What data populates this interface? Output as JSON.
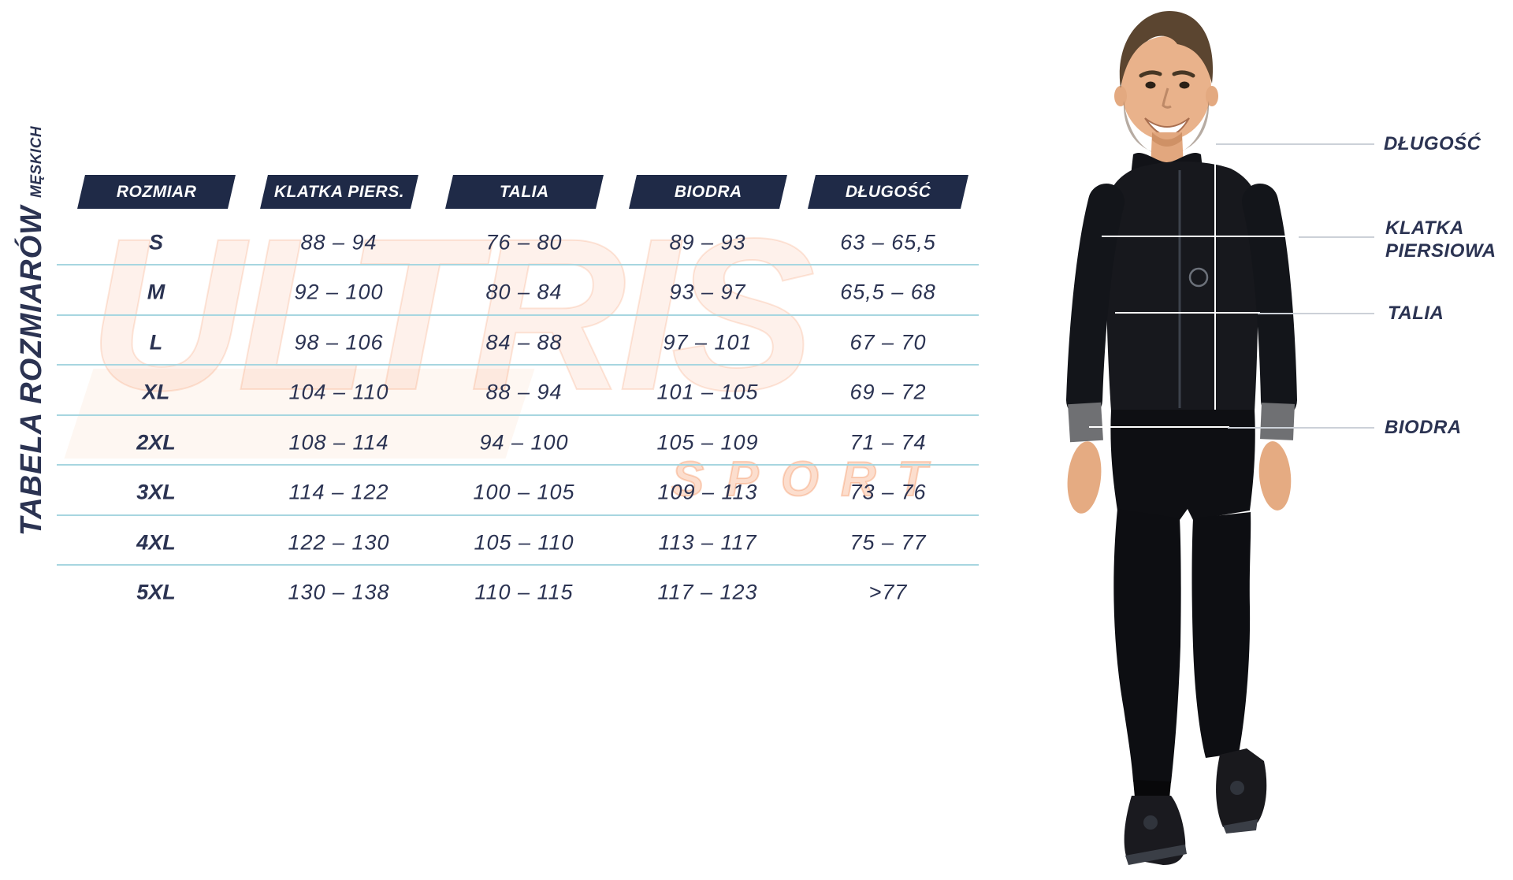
{
  "title": {
    "main": "TABELA ROZMIARÓW",
    "sub": "MĘSKICH"
  },
  "watermark": {
    "word1": "ULTRIS",
    "word2": "SPORT"
  },
  "table": {
    "columns": [
      "ROZMIAR",
      "KLATKA PIERS.",
      "TALIA",
      "BIODRA",
      "DŁUGOŚĆ"
    ],
    "rows": [
      {
        "size": "S",
        "chest": "88 – 94",
        "waist": "76 – 80",
        "hips": "89 – 93",
        "length": "63 – 65,5"
      },
      {
        "size": "M",
        "chest": "92 – 100",
        "waist": "80 – 84",
        "hips": "93 – 97",
        "length": "65,5 – 68"
      },
      {
        "size": "L",
        "chest": "98 – 106",
        "waist": "84 – 88",
        "hips": "97 – 101",
        "length": "67 – 70"
      },
      {
        "size": "XL",
        "chest": "104 – 110",
        "waist": "88 – 94",
        "hips": "101 – 105",
        "length": "69 – 72"
      },
      {
        "size": "2XL",
        "chest": "108 – 114",
        "waist": "94 – 100",
        "hips": "105 – 109",
        "length": "71 – 74"
      },
      {
        "size": "3XL",
        "chest": "114 – 122",
        "waist": "100 – 105",
        "hips": "109 – 113",
        "length": "73 – 76"
      },
      {
        "size": "4XL",
        "chest": "122 – 130",
        "waist": "105 – 110",
        "hips": "113 – 117",
        "length": "75 – 77"
      },
      {
        "size": "5XL",
        "chest": "130 – 138",
        "waist": "110 – 115",
        "hips": "117 – 123",
        "length": ">77"
      }
    ]
  },
  "figure": {
    "labels": [
      {
        "id": "dlugosc",
        "text": "DŁUGOŚĆ"
      },
      {
        "id": "klatka-piersiowa",
        "text": "KLATKA PIERSIOWA"
      },
      {
        "id": "talia",
        "text": "TALIA"
      },
      {
        "id": "biodra",
        "text": "BIODRA"
      }
    ]
  },
  "colors": {
    "navy_header": "#1F2A47",
    "navy_text": "#2B3352",
    "separator_cyan": "#A7D6E0",
    "watermark_orange": "#F27A3C",
    "white": "#FFFFFF"
  },
  "chart_data": {
    "type": "table",
    "title": "TABELA ROZMIARÓW MĘSKICH",
    "columns": [
      "ROZMIAR",
      "KLATKA PIERS.",
      "TALIA",
      "BIODRA",
      "DŁUGOŚĆ"
    ],
    "rows": [
      [
        "S",
        "88 – 94",
        "76 – 80",
        "89 – 93",
        "63 – 65,5"
      ],
      [
        "M",
        "92 – 100",
        "80 – 84",
        "93 – 97",
        "65,5 – 68"
      ],
      [
        "L",
        "98 – 106",
        "84 – 88",
        "97 – 101",
        "67 – 70"
      ],
      [
        "XL",
        "104 – 110",
        "88 – 94",
        "101 – 105",
        "69 – 72"
      ],
      [
        "2XL",
        "108 – 114",
        "94 – 100",
        "105 – 109",
        "71 – 74"
      ],
      [
        "3XL",
        "114 – 122",
        "100 – 105",
        "109 – 113",
        "73 – 76"
      ],
      [
        "4XL",
        "122 – 130",
        "105 – 110",
        "113 – 117",
        "75 – 77"
      ],
      [
        "5XL",
        "130 – 138",
        "110 – 115",
        "117 – 123",
        ">77"
      ]
    ],
    "measurement_labels": [
      "DŁUGOŚĆ",
      "KLATKA PIERSIOWA",
      "TALIA",
      "BIODRA"
    ]
  }
}
